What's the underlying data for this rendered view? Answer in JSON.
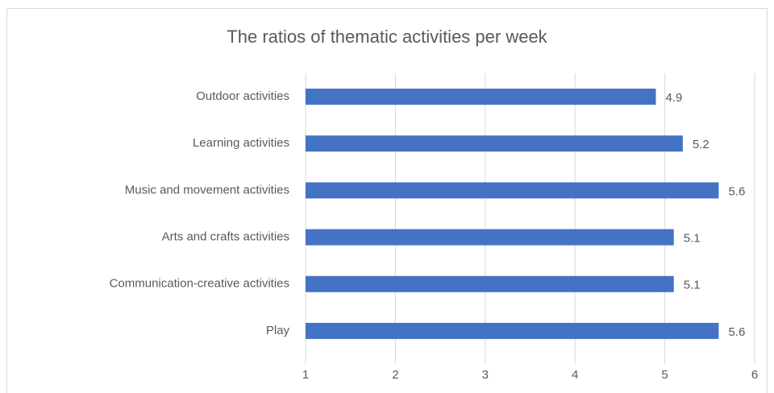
{
  "chart_data": {
    "type": "bar",
    "orientation": "horizontal",
    "title": "The ratios of thematic activities per week",
    "categories": [
      "Outdoor activities",
      "Learning activities",
      "Music and movement activities",
      "Arts and crafts activities",
      "Communication-creative activities",
      "Play"
    ],
    "values": [
      4.9,
      5.2,
      5.6,
      5.1,
      5.1,
      5.6
    ],
    "color": "#4472c4",
    "xlim": [
      1,
      6
    ],
    "xticks": [
      1,
      2,
      3,
      4,
      5,
      6
    ],
    "grid": true
  }
}
